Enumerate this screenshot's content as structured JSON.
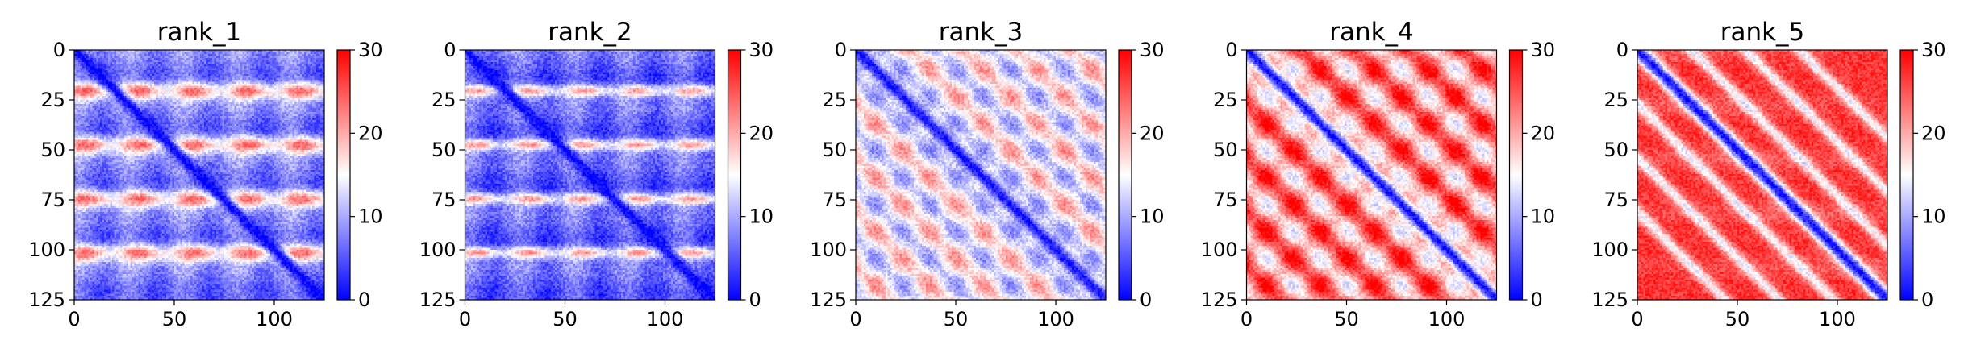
{
  "chart_data": [
    {
      "type": "heatmap",
      "title": "rank_1",
      "grid_size": 125,
      "x_ticks": [
        0,
        50,
        100
      ],
      "y_ticks": [
        0,
        25,
        50,
        75,
        100,
        125
      ],
      "xlim": [
        0,
        125
      ],
      "ylim": [
        125,
        0
      ],
      "colorbar": {
        "range": [
          0,
          30
        ],
        "ticks": [
          0,
          10,
          20,
          30
        ],
        "colormap": "bwr",
        "colors": [
          "#0000ff",
          "#ffffff",
          "#ff0000"
        ]
      },
      "pattern": {
        "diagonal_value": 0,
        "background_value": 7,
        "band_rows": [
          20,
          47,
          74,
          101
        ],
        "band_value": 24,
        "band_width": 3,
        "stripe_period": 27,
        "description_values": "low values everywhere except the diagonal minimum and horizontal high bands near rows 20, 47, 74, 101"
      }
    },
    {
      "type": "heatmap",
      "title": "rank_2",
      "grid_size": 125,
      "x_ticks": [
        0,
        50,
        100
      ],
      "y_ticks": [
        0,
        25,
        50,
        75,
        100,
        125
      ],
      "xlim": [
        0,
        125
      ],
      "ylim": [
        125,
        0
      ],
      "colorbar": {
        "range": [
          0,
          30
        ],
        "ticks": [
          0,
          10,
          20,
          30
        ],
        "colormap": "bwr",
        "colors": [
          "#0000ff",
          "#ffffff",
          "#ff0000"
        ]
      },
      "pattern": {
        "diagonal_value": 0,
        "background_value": 6,
        "band_rows": [
          20,
          47,
          74,
          101
        ],
        "band_value": 21,
        "band_width": 2,
        "stripe_period": 27
      }
    },
    {
      "type": "heatmap",
      "title": "rank_3",
      "grid_size": 125,
      "x_ticks": [
        0,
        50,
        100
      ],
      "y_ticks": [
        0,
        25,
        50,
        75,
        100,
        125
      ],
      "xlim": [
        0,
        125
      ],
      "ylim": [
        125,
        0
      ],
      "colorbar": {
        "range": [
          0,
          30
        ],
        "ticks": [
          0,
          10,
          20,
          30
        ],
        "colormap": "bwr",
        "colors": [
          "#0000ff",
          "#ffffff",
          "#ff0000"
        ]
      },
      "pattern": {
        "diagonal_value": 1,
        "background_value": 15,
        "block_period": 27,
        "block_amplitude": 7
      }
    },
    {
      "type": "heatmap",
      "title": "rank_4",
      "grid_size": 125,
      "x_ticks": [
        0,
        50,
        100
      ],
      "y_ticks": [
        0,
        25,
        50,
        75,
        100,
        125
      ],
      "xlim": [
        0,
        125
      ],
      "ylim": [
        125,
        0
      ],
      "colorbar": {
        "range": [
          0,
          30
        ],
        "ticks": [
          0,
          10,
          20,
          30
        ],
        "colormap": "bwr",
        "colors": [
          "#0000ff",
          "#ffffff",
          "#ff0000"
        ]
      },
      "pattern": {
        "diagonal_value": 1,
        "background_value": 22,
        "block_period": 27,
        "block_amplitude": 9
      }
    },
    {
      "type": "heatmap",
      "title": "rank_5",
      "grid_size": 125,
      "x_ticks": [
        0,
        50,
        100
      ],
      "y_ticks": [
        0,
        25,
        50,
        75,
        100,
        125
      ],
      "xlim": [
        0,
        125
      ],
      "ylim": [
        125,
        0
      ],
      "colorbar": {
        "range": [
          0,
          30
        ],
        "ticks": [
          0,
          10,
          20,
          30
        ],
        "colormap": "bwr",
        "colors": [
          "#0000ff",
          "#ffffff",
          "#ff0000"
        ]
      },
      "pattern": {
        "diagonal_value": 1,
        "background_value": 27,
        "off_diagonal_stripes": [
          27,
          54,
          81
        ],
        "stripe_value": 15
      }
    }
  ]
}
